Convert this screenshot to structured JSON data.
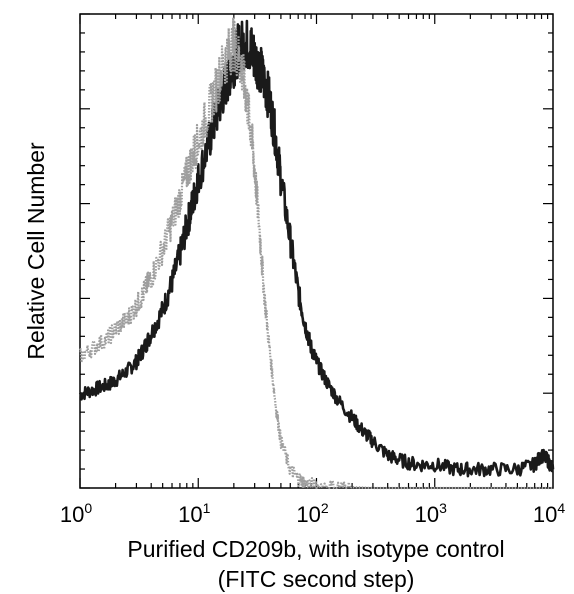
{
  "chart_data": {
    "type": "line",
    "title": "",
    "xlabel": "Purified CD209b, with isotype control",
    "xlabel_line2": "(FITC second step)",
    "ylabel": "Relative Cell Number",
    "x_scale": "log",
    "xlim": [
      1,
      10000
    ],
    "ylim": [
      0,
      100
    ],
    "x_ticks": [
      {
        "base": "10",
        "exp": "0",
        "value": 1
      },
      {
        "base": "10",
        "exp": "1",
        "value": 10
      },
      {
        "base": "10",
        "exp": "2",
        "value": 100
      },
      {
        "base": "10",
        "exp": "3",
        "value": 1000
      },
      {
        "base": "10",
        "exp": "4",
        "value": 10000
      }
    ],
    "y_ticks_labeled": false,
    "grid": false,
    "legend": "none",
    "series": [
      {
        "color": "#1a1a1a",
        "style": "solid",
        "x": [
          1,
          1.3,
          1.7,
          2,
          2.5,
          3,
          3.5,
          4,
          5,
          6,
          7,
          8,
          9,
          10,
          12,
          14,
          16,
          18,
          20,
          22,
          25,
          28,
          30,
          33,
          36,
          40,
          45,
          50,
          60,
          70,
          80,
          90,
          100,
          120,
          150,
          200,
          250,
          300,
          400,
          500,
          700,
          1000,
          1500,
          2000,
          3000,
          5000,
          7000,
          8000,
          9000,
          10000
        ],
        "y": [
          20,
          21,
          22,
          23,
          25,
          27,
          30,
          33,
          38,
          44,
          50,
          56,
          61,
          66,
          73,
          79,
          84,
          88,
          91,
          94,
          95,
          94,
          92,
          90,
          87,
          83,
          75,
          66,
          53,
          42,
          35,
          30,
          27,
          23,
          19,
          15,
          12,
          10,
          7,
          6,
          5,
          5,
          4,
          4,
          4,
          4,
          5,
          7,
          6,
          4
        ]
      },
      {
        "color": "#9e9e9e",
        "style": "dotted",
        "x": [
          1,
          1.3,
          1.7,
          2,
          2.5,
          3,
          3.5,
          4,
          5,
          6,
          7,
          8,
          9,
          10,
          12,
          14,
          16,
          18,
          20,
          22,
          24,
          26,
          28,
          30,
          33,
          36,
          40,
          45,
          50,
          60,
          70,
          80,
          100,
          150,
          200,
          300,
          500,
          1000,
          10000
        ],
        "y": [
          28,
          30,
          32,
          34,
          36,
          39,
          42,
          45,
          51,
          57,
          62,
          67,
          71,
          74,
          80,
          85,
          90,
          93,
          95,
          92,
          88,
          82,
          76,
          68,
          55,
          42,
          30,
          18,
          10,
          4,
          2,
          1,
          0.5,
          0.3,
          0.2,
          0,
          0,
          0,
          0
        ]
      }
    ]
  }
}
